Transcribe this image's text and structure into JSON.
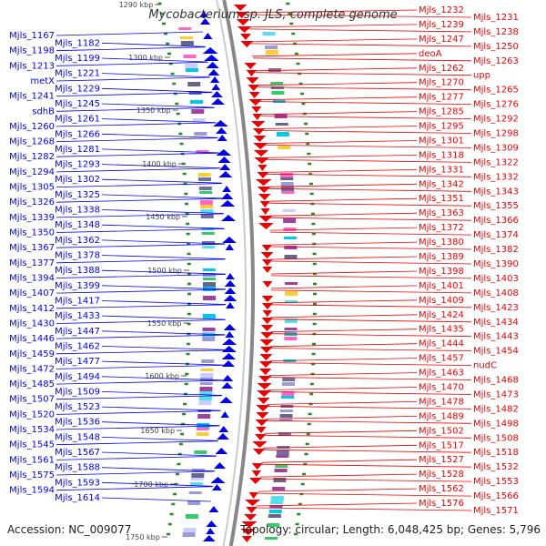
{
  "title": "Mycobacterium sp. JLS, complete genome",
  "footer": {
    "accession": "Accession: NC_009077",
    "summary": "Topology: circular; Length: 6,048,425 bp; Genes: 5,796"
  },
  "colors": {
    "reverse_strand": "#0000ee",
    "forward_strand": "#ee0000",
    "tick": "#228b22",
    "backbone": "#888888"
  },
  "scale_labels": [
    "1290 kbp",
    "1300 kbp",
    "1350 kbp",
    "1400 kbp",
    "1450 kbp",
    "1500 kbp",
    "1550 kbp",
    "1600 kbp",
    "1650 kbp",
    "1700 kbp",
    "1750 kbp"
  ],
  "left_labels": [
    "Mjls_1167",
    "Mjls_1182",
    "Mjls_1198",
    "Mjls_1199",
    "Mjls_1213",
    "Mjls_1221",
    "metX",
    "Mjls_1229",
    "Mjls_1241",
    "Mjls_1245",
    "sdhB",
    "Mjls_1261",
    "Mjls_1260",
    "Mjls_1266",
    "Mjls_1268",
    "Mjls_1281",
    "Mjls_1282",
    "Mjls_1293",
    "Mjls_1294",
    "Mjls_1302",
    "Mjls_1305",
    "Mjls_1325",
    "Mjls_1326",
    "Mjls_1338",
    "Mjls_1339",
    "Mjls_1348",
    "Mjls_1350",
    "Mjls_1362",
    "Mjls_1367",
    "Mjls_1378",
    "Mjls_1377",
    "Mjls_1388",
    "Mjls_1394",
    "Mjls_1399",
    "Mjls_1407",
    "Mjls_1417",
    "Mjls_1412",
    "Mjls_1433",
    "Mjls_1430",
    "Mjls_1447",
    "Mjls_1446",
    "Mjls_1462",
    "Mjls_1459",
    "Mjls_1477",
    "Mjls_1472",
    "Mjls_1494",
    "Mjls_1485",
    "Mjls_1509",
    "Mjls_1507",
    "Mjls_1523",
    "Mjls_1520",
    "Mjls_1536",
    "Mjls_1534",
    "Mjls_1548",
    "Mjls_1545",
    "Mjls_1567",
    "Mjls_1561",
    "Mjls_1588",
    "Mjls_1575",
    "Mjls_1593",
    "Mjls_1594",
    "Mjls_1614"
  ],
  "right_labels": [
    "Mjls_1232",
    "Mjls_1231",
    "Mjls_1239",
    "Mjls_1238",
    "Mjls_1247",
    "Mjls_1250",
    "deoA",
    "Mjls_1263",
    "Mjls_1262",
    "upp",
    "Mjls_1270",
    "Mjls_1265",
    "Mjls_1277",
    "Mjls_1276",
    "Mjls_1285",
    "Mjls_1292",
    "Mjls_1295",
    "Mjls_1298",
    "Mjls_1301",
    "Mjls_1309",
    "Mjls_1318",
    "Mjls_1322",
    "Mjls_1331",
    "Mjls_1332",
    "Mjls_1342",
    "Mjls_1343",
    "Mjls_1351",
    "Mjls_1355",
    "Mjls_1363",
    "Mjls_1366",
    "Mjls_1372",
    "Mjls_1374",
    "Mjls_1380",
    "Mjls_1382",
    "Mjls_1389",
    "Mjls_1390",
    "Mjls_1398",
    "Mjls_1403",
    "Mjls_1401",
    "Mjls_1408",
    "Mjls_1409",
    "Mjls_1423",
    "Mjls_1424",
    "Mjls_1434",
    "Mjls_1435",
    "Mjls_1443",
    "Mjls_1444",
    "Mjls_1454",
    "Mjls_1457",
    "nudC",
    "Mjls_1463",
    "Mjls_1468",
    "Mjls_1470",
    "Mjls_1473",
    "Mjls_1478",
    "Mjls_1482",
    "Mjls_1489",
    "Mjls_1498",
    "Mjls_1502",
    "Mjls_1508",
    "Mjls_1517",
    "Mjls_1518",
    "Mjls_1527",
    "Mjls_1532",
    "Mjls_1528",
    "Mjls_1553",
    "Mjls_1562",
    "Mjls_1566",
    "Mjls_1576",
    "Mjls_1571"
  ]
}
